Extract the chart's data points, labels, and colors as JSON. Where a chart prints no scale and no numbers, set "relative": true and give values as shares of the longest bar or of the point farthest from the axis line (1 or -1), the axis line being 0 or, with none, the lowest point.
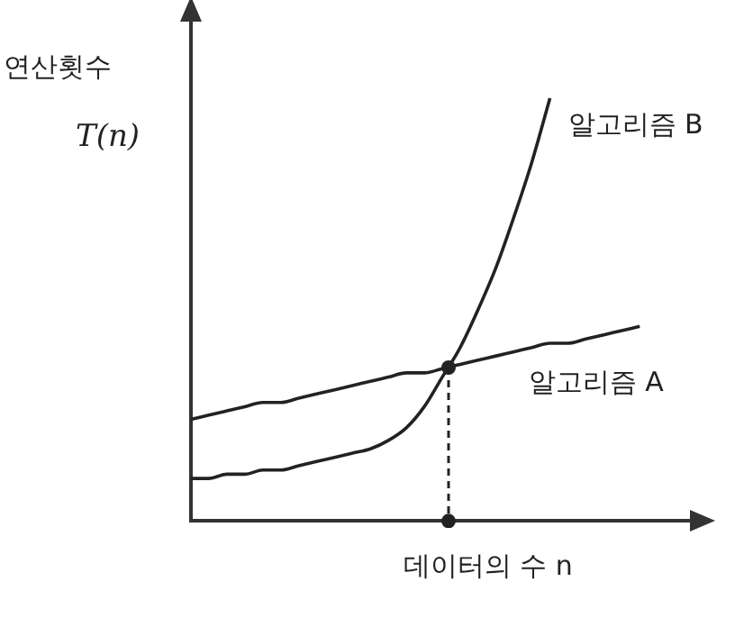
{
  "chart_data": {
    "type": "line",
    "relative": true,
    "xlabel": "데이터의 수 n",
    "ylabel": "연산횟수",
    "annotations": [
      "T(n)"
    ],
    "marker": "none",
    "legend": false,
    "categories": [
      null,
      null,
      null,
      null,
      null,
      null,
      null,
      null,
      null,
      null,
      null,
      null,
      null,
      null,
      null,
      null,
      null,
      null,
      null,
      null,
      null,
      null,
      null,
      null,
      null,
      null,
      null,
      null,
      null
    ],
    "series": [
      {
        "name": "알고리즘 A",
        "color": "#222222",
        "values": [
          0.24,
          0.25,
          0.26,
          0.27,
          0.28,
          0.28,
          0.29,
          0.3,
          0.31,
          0.32,
          0.33,
          0.34,
          0.35,
          0.35,
          0.36,
          0.37,
          0.38,
          0.39,
          0.4,
          0.41,
          0.42,
          0.42,
          0.43,
          0.44,
          0.45,
          0.46,
          null,
          null,
          null
        ]
      },
      {
        "name": "알고리즘 B",
        "color": "#222222",
        "values": [
          0.1,
          0.1,
          0.11,
          0.11,
          0.12,
          0.12,
          0.13,
          0.14,
          0.15,
          0.16,
          0.17,
          0.19,
          0.22,
          0.27,
          0.34,
          0.41,
          0.5,
          0.6,
          0.72,
          0.85,
          1.0,
          null,
          null,
          null,
          null,
          null,
          null,
          null,
          null
        ]
      }
    ]
  }
}
